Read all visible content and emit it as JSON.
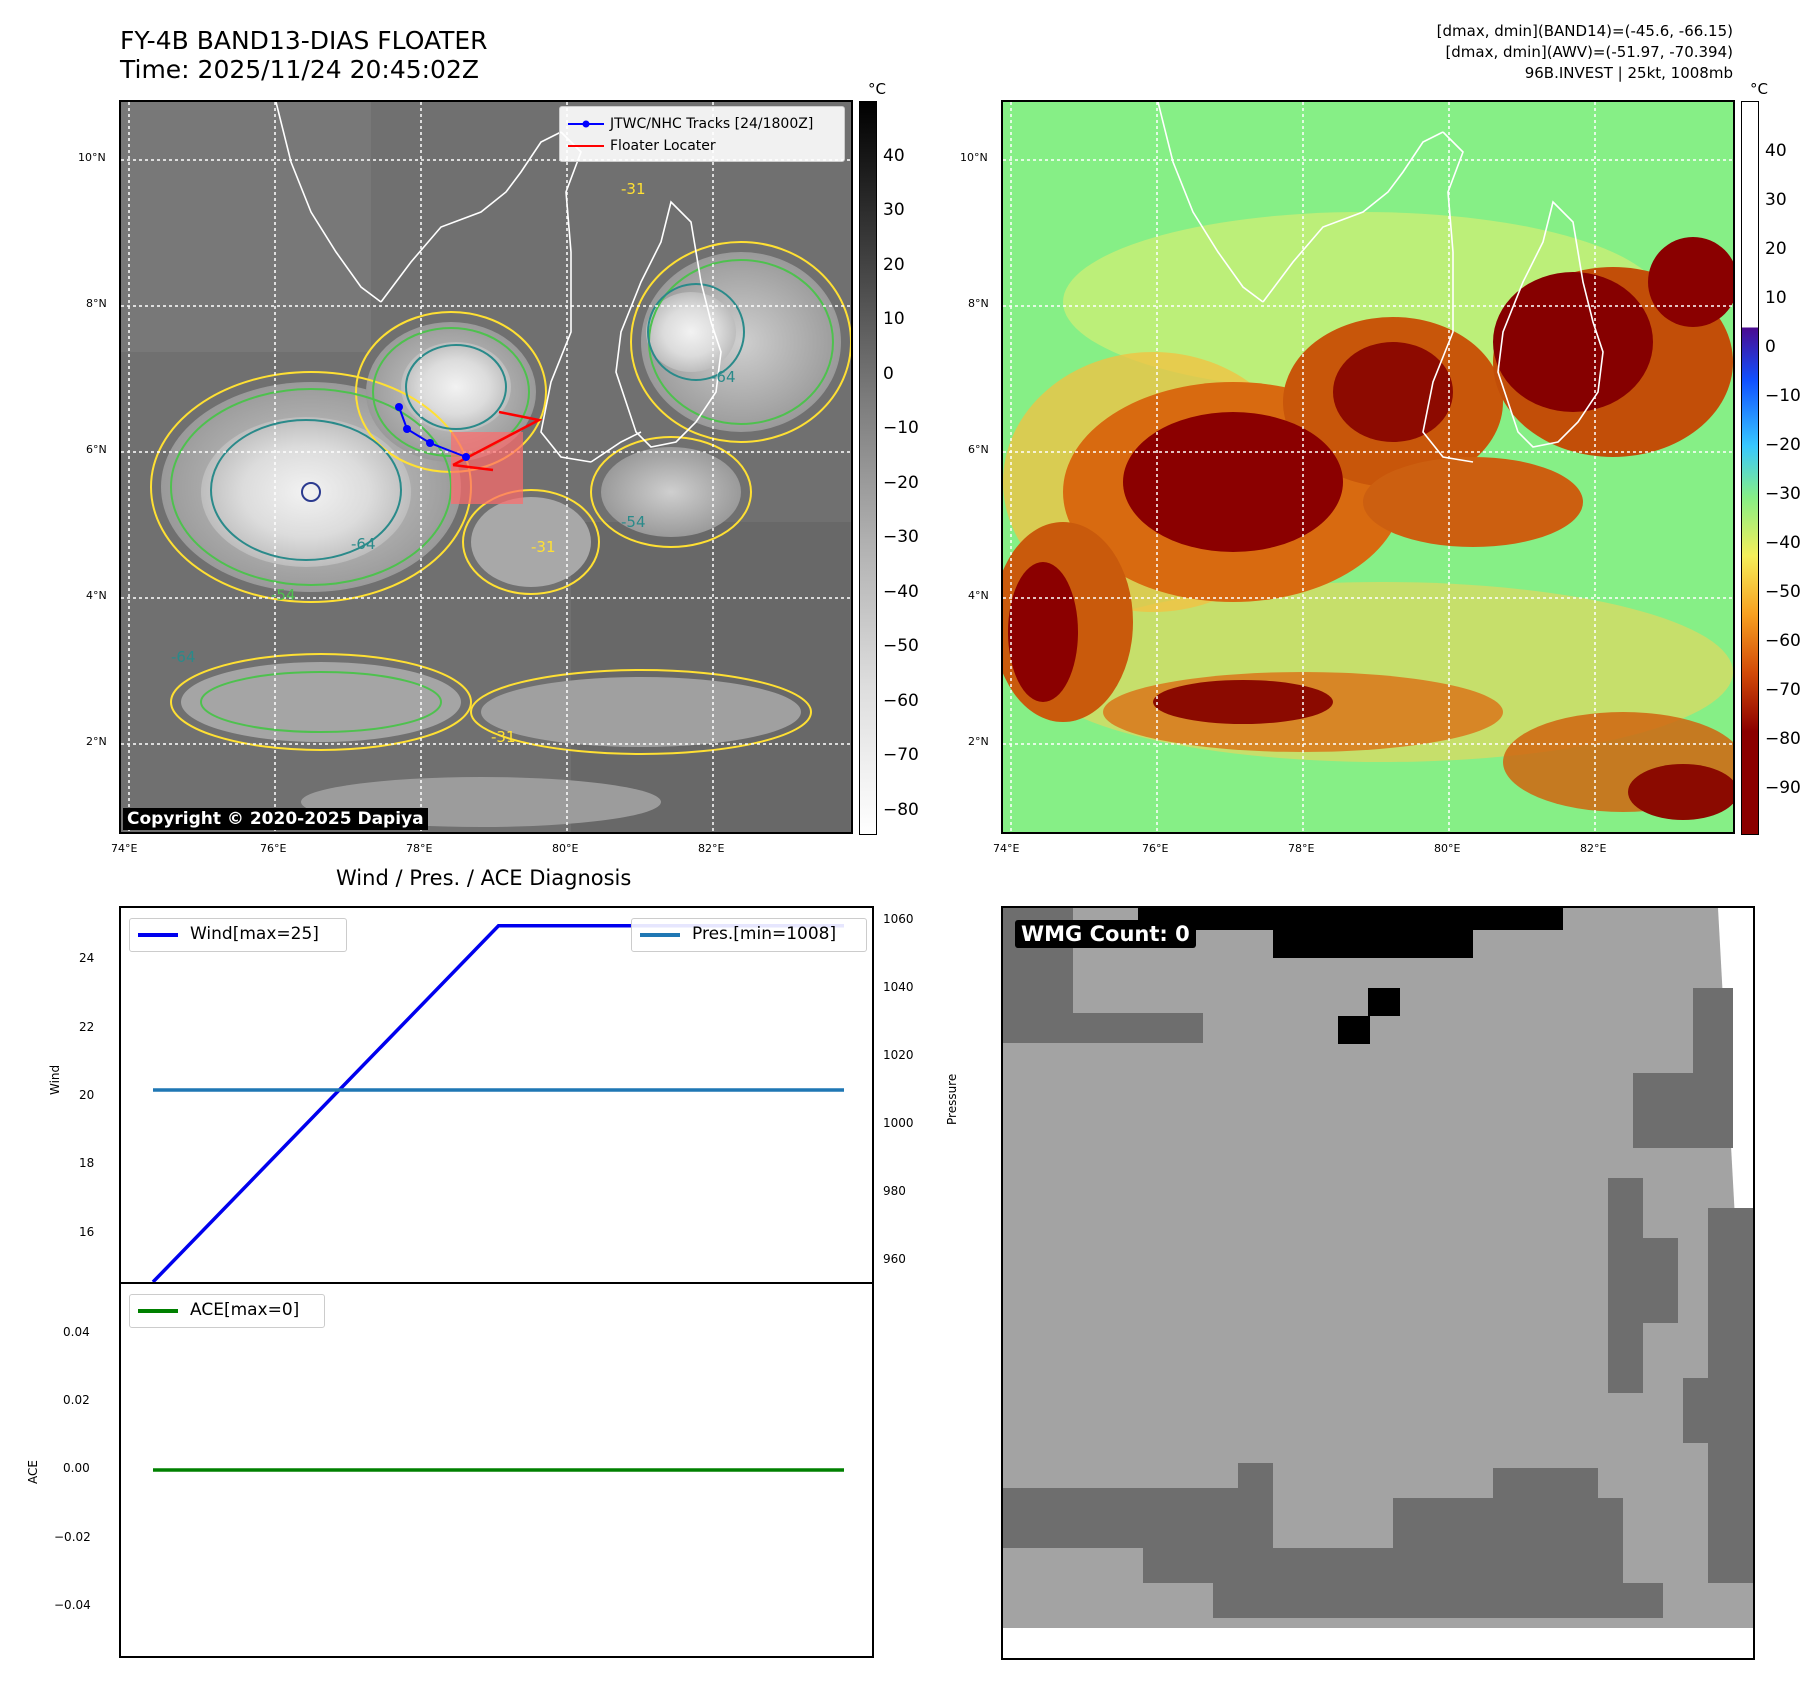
{
  "header": {
    "title_line1": "FY-4B BAND13-DIAS FLOATER",
    "title_line2": "Time: 2025/11/24 20:45:02Z",
    "info_line1": "[dmax, dmin](BAND14)=(-45.6, -66.15)",
    "info_line2": "[dmax, dmin](AWV)=(-51.97, -70.394)",
    "info_line3": "96B.INVEST | 25kt, 1008mb"
  },
  "map_axes": {
    "lat_labels": [
      "10°N",
      "8°N",
      "6°N",
      "4°N",
      "2°N"
    ],
    "lon_labels": [
      "74°E",
      "76°E",
      "78°E",
      "80°E",
      "82°E"
    ]
  },
  "ir_panel": {
    "legend": [
      "JTWC/NHC Tracks [24/1800Z]",
      "Floater Locater"
    ],
    "contour_labels": [
      "-31",
      "-54",
      "-64"
    ],
    "copyright": "Copyright © 2020-2025 Dapiya",
    "colorbar_unit": "°C",
    "colorbar_ticks": [
      "40",
      "30",
      "20",
      "10",
      "0",
      "−10",
      "−20",
      "−30",
      "−40",
      "−50",
      "−60",
      "−70",
      "−80"
    ],
    "colors": {
      "track": "#0000ff",
      "locater": "#ff0000",
      "contour_31": "#ffe033",
      "contour_54": "#4ec14e",
      "contour_64": "#2a8a8a"
    }
  },
  "awv_panel": {
    "colorbar_unit": "°C",
    "colorbar_ticks": [
      "40",
      "30",
      "20",
      "10",
      "0",
      "−10",
      "−20",
      "−30",
      "−40",
      "−50",
      "−60",
      "−70",
      "−80",
      "−90"
    ]
  },
  "diagnosis": {
    "title": "Wind / Pres. / ACE Diagnosis",
    "wind_ylabel": "Wind",
    "pressure_ylabel": "Pressure",
    "ace_ylabel": "ACE",
    "wind_legend": "Wind[max=25]",
    "pres_legend": "Pres.[min=1008]",
    "ace_legend": "ACE[max=0]",
    "wind_ticks": [
      "24",
      "22",
      "20",
      "18",
      "16"
    ],
    "pres_ticks": [
      "1060",
      "1040",
      "1020",
      "1000",
      "980",
      "960"
    ],
    "ace_ticks": [
      "0.04",
      "0.02",
      "0.00",
      "−0.02",
      "−0.04"
    ],
    "colors": {
      "wind": "#0000ee",
      "pressure": "#1f77b4",
      "ace": "#008000"
    }
  },
  "wmg_panel": {
    "label": "WMG Count: 0"
  },
  "chart_data": [
    {
      "type": "line",
      "title": "Wind / Pres. / ACE Diagnosis",
      "ylabel": "Wind",
      "series": [
        {
          "name": "Wind[max=25]",
          "x": [
            0,
            1,
            2
          ],
          "values": [
            15,
            25,
            25
          ]
        }
      ],
      "ylim": [
        15,
        25.5
      ]
    },
    {
      "type": "line",
      "ylabel": "Pressure",
      "series": [
        {
          "name": "Pres.[min=1008]",
          "x": [
            0,
            2
          ],
          "values": [
            1008,
            1008
          ]
        }
      ],
      "ylim": [
        950,
        1063
      ]
    },
    {
      "type": "line",
      "ylabel": "ACE",
      "series": [
        {
          "name": "ACE[max=0]",
          "x": [
            0,
            2
          ],
          "values": [
            0,
            0
          ]
        }
      ],
      "ylim": [
        -0.055,
        0.055
      ]
    }
  ]
}
